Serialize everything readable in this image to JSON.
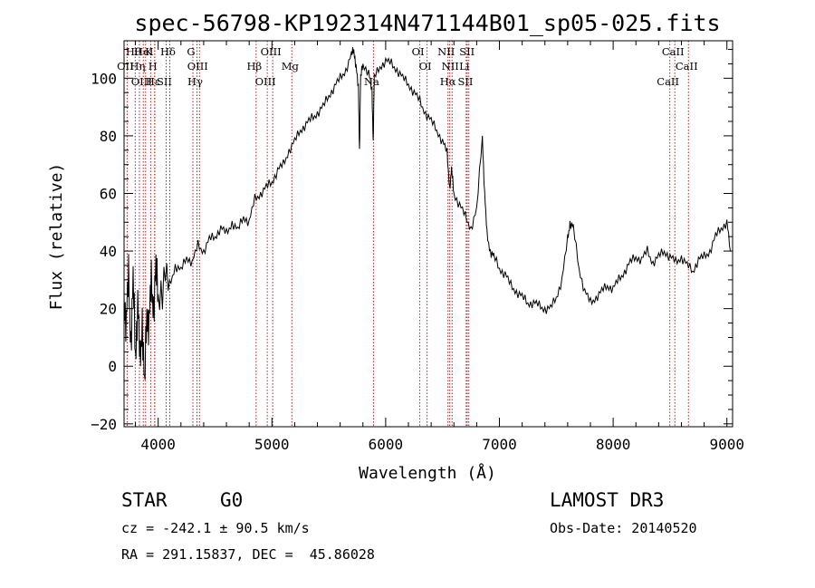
{
  "chart_data": {
    "type": "line",
    "title": "spec-56798-KP192314N471144B01_sp05-025.fits",
    "xlabel": "Wavelength (Å)",
    "ylabel": "Flux (relative)",
    "xlim": [
      3700,
      9050
    ],
    "ylim": [
      -21,
      113
    ],
    "xticks": [
      4000,
      5000,
      6000,
      7000,
      8000,
      9000
    ],
    "yticks": [
      -20,
      0,
      20,
      40,
      60,
      80,
      100
    ],
    "series": [
      {
        "name": "flux",
        "x": [
          3700,
          3720,
          3740,
          3760,
          3780,
          3800,
          3820,
          3840,
          3860,
          3880,
          3900,
          3920,
          3940,
          3960,
          3980,
          4000,
          4050,
          4100,
          4150,
          4200,
          4250,
          4300,
          4350,
          4400,
          4450,
          4500,
          4550,
          4600,
          4650,
          4700,
          4750,
          4800,
          4850,
          4900,
          4950,
          5000,
          5050,
          5100,
          5150,
          5200,
          5250,
          5300,
          5350,
          5400,
          5450,
          5500,
          5550,
          5600,
          5650,
          5700,
          5720,
          5740,
          5760,
          5770,
          5780,
          5800,
          5850,
          5880,
          5890,
          5900,
          5950,
          6000,
          6050,
          6100,
          6150,
          6200,
          6250,
          6300,
          6350,
          6400,
          6450,
          6500,
          6540,
          6563,
          6580,
          6600,
          6650,
          6700,
          6750,
          6800,
          6850,
          6870,
          6890,
          6920,
          6950,
          7000,
          7050,
          7100,
          7150,
          7200,
          7250,
          7300,
          7350,
          7400,
          7450,
          7500,
          7550,
          7600,
          7620,
          7650,
          7700,
          7750,
          7800,
          7850,
          7900,
          7950,
          8000,
          8050,
          8100,
          8150,
          8200,
          8250,
          8300,
          8350,
          8400,
          8450,
          8500,
          8550,
          8600,
          8650,
          8700,
          8750,
          8800,
          8850,
          8900,
          8950,
          9000,
          9030
        ],
        "y": [
          25,
          15,
          30,
          10,
          28,
          5,
          22,
          0,
          18,
          -10,
          20,
          15,
          28,
          22,
          32,
          25,
          30,
          28,
          35,
          33,
          38,
          36,
          42,
          40,
          44,
          45,
          48,
          46,
          50,
          47,
          52,
          50,
          58,
          60,
          62,
          64,
          68,
          70,
          75,
          78,
          82,
          84,
          86,
          88,
          90,
          94,
          97,
          100,
          103,
          108,
          110,
          104,
          96,
          75,
          100,
          105,
          102,
          95,
          78,
          100,
          104,
          106,
          105,
          103,
          100,
          98,
          95,
          92,
          88,
          85,
          82,
          78,
          74,
          62,
          68,
          60,
          56,
          52,
          48,
          54,
          80,
          60,
          46,
          40,
          38,
          34,
          32,
          28,
          26,
          24,
          22,
          22,
          21,
          20,
          20,
          24,
          30,
          44,
          50,
          48,
          34,
          26,
          22,
          24,
          26,
          28,
          27,
          30,
          33,
          36,
          38,
          37,
          40,
          36,
          38,
          40,
          38,
          36,
          38,
          35,
          33,
          37,
          38,
          40,
          45,
          48,
          50,
          40
        ]
      }
    ],
    "lines": [
      {
        "label": "Hθ",
        "x": 3798
      },
      {
        "label": "OII",
        "x": 3727
      },
      {
        "label": "OIII",
        "x": 3869
      },
      {
        "label": "K",
        "x": 3934
      },
      {
        "label": "H",
        "x": 3969
      },
      {
        "label": "Hε",
        "x": 3970
      },
      {
        "label": "HeI",
        "x": 3889
      },
      {
        "label": "Hη",
        "x": 3835
      },
      {
        "label": "SII",
        "x": 4070
      },
      {
        "label": "Hδ",
        "x": 4102
      },
      {
        "label": "OIII",
        "x": 4363
      },
      {
        "label": "Hγ",
        "x": 4341
      },
      {
        "label": "G",
        "x": 4305
      },
      {
        "label": "Hβ",
        "x": 4861
      },
      {
        "label": "OIII",
        "x": 4959
      },
      {
        "label": "OIII",
        "x": 5007
      },
      {
        "label": "Mg",
        "x": 5175
      },
      {
        "label": "Na",
        "x": 5893
      },
      {
        "label": "OI",
        "x": 6300
      },
      {
        "label": "OI",
        "x": 6364
      },
      {
        "label": "Hα",
        "x": 6563
      },
      {
        "label": "NII",
        "x": 6548
      },
      {
        "label": "NII",
        "x": 6584
      },
      {
        "label": "SII",
        "x": 6717
      },
      {
        "label": "SII",
        "x": 6731
      },
      {
        "label": "Li",
        "x": 6708
      },
      {
        "label": "CaII",
        "x": 8498
      },
      {
        "label": "CaII",
        "x": 8542
      },
      {
        "label": "CaII",
        "x": 8662
      }
    ]
  },
  "info": {
    "object_class": "STAR",
    "subclass": "G0",
    "survey": "LAMOST DR3",
    "cz": "cz = -242.1 ± 90.5 km/s",
    "obs_date": "Obs-Date: 20140520",
    "coords": "RA = 291.15837, DEC =  45.86028"
  }
}
